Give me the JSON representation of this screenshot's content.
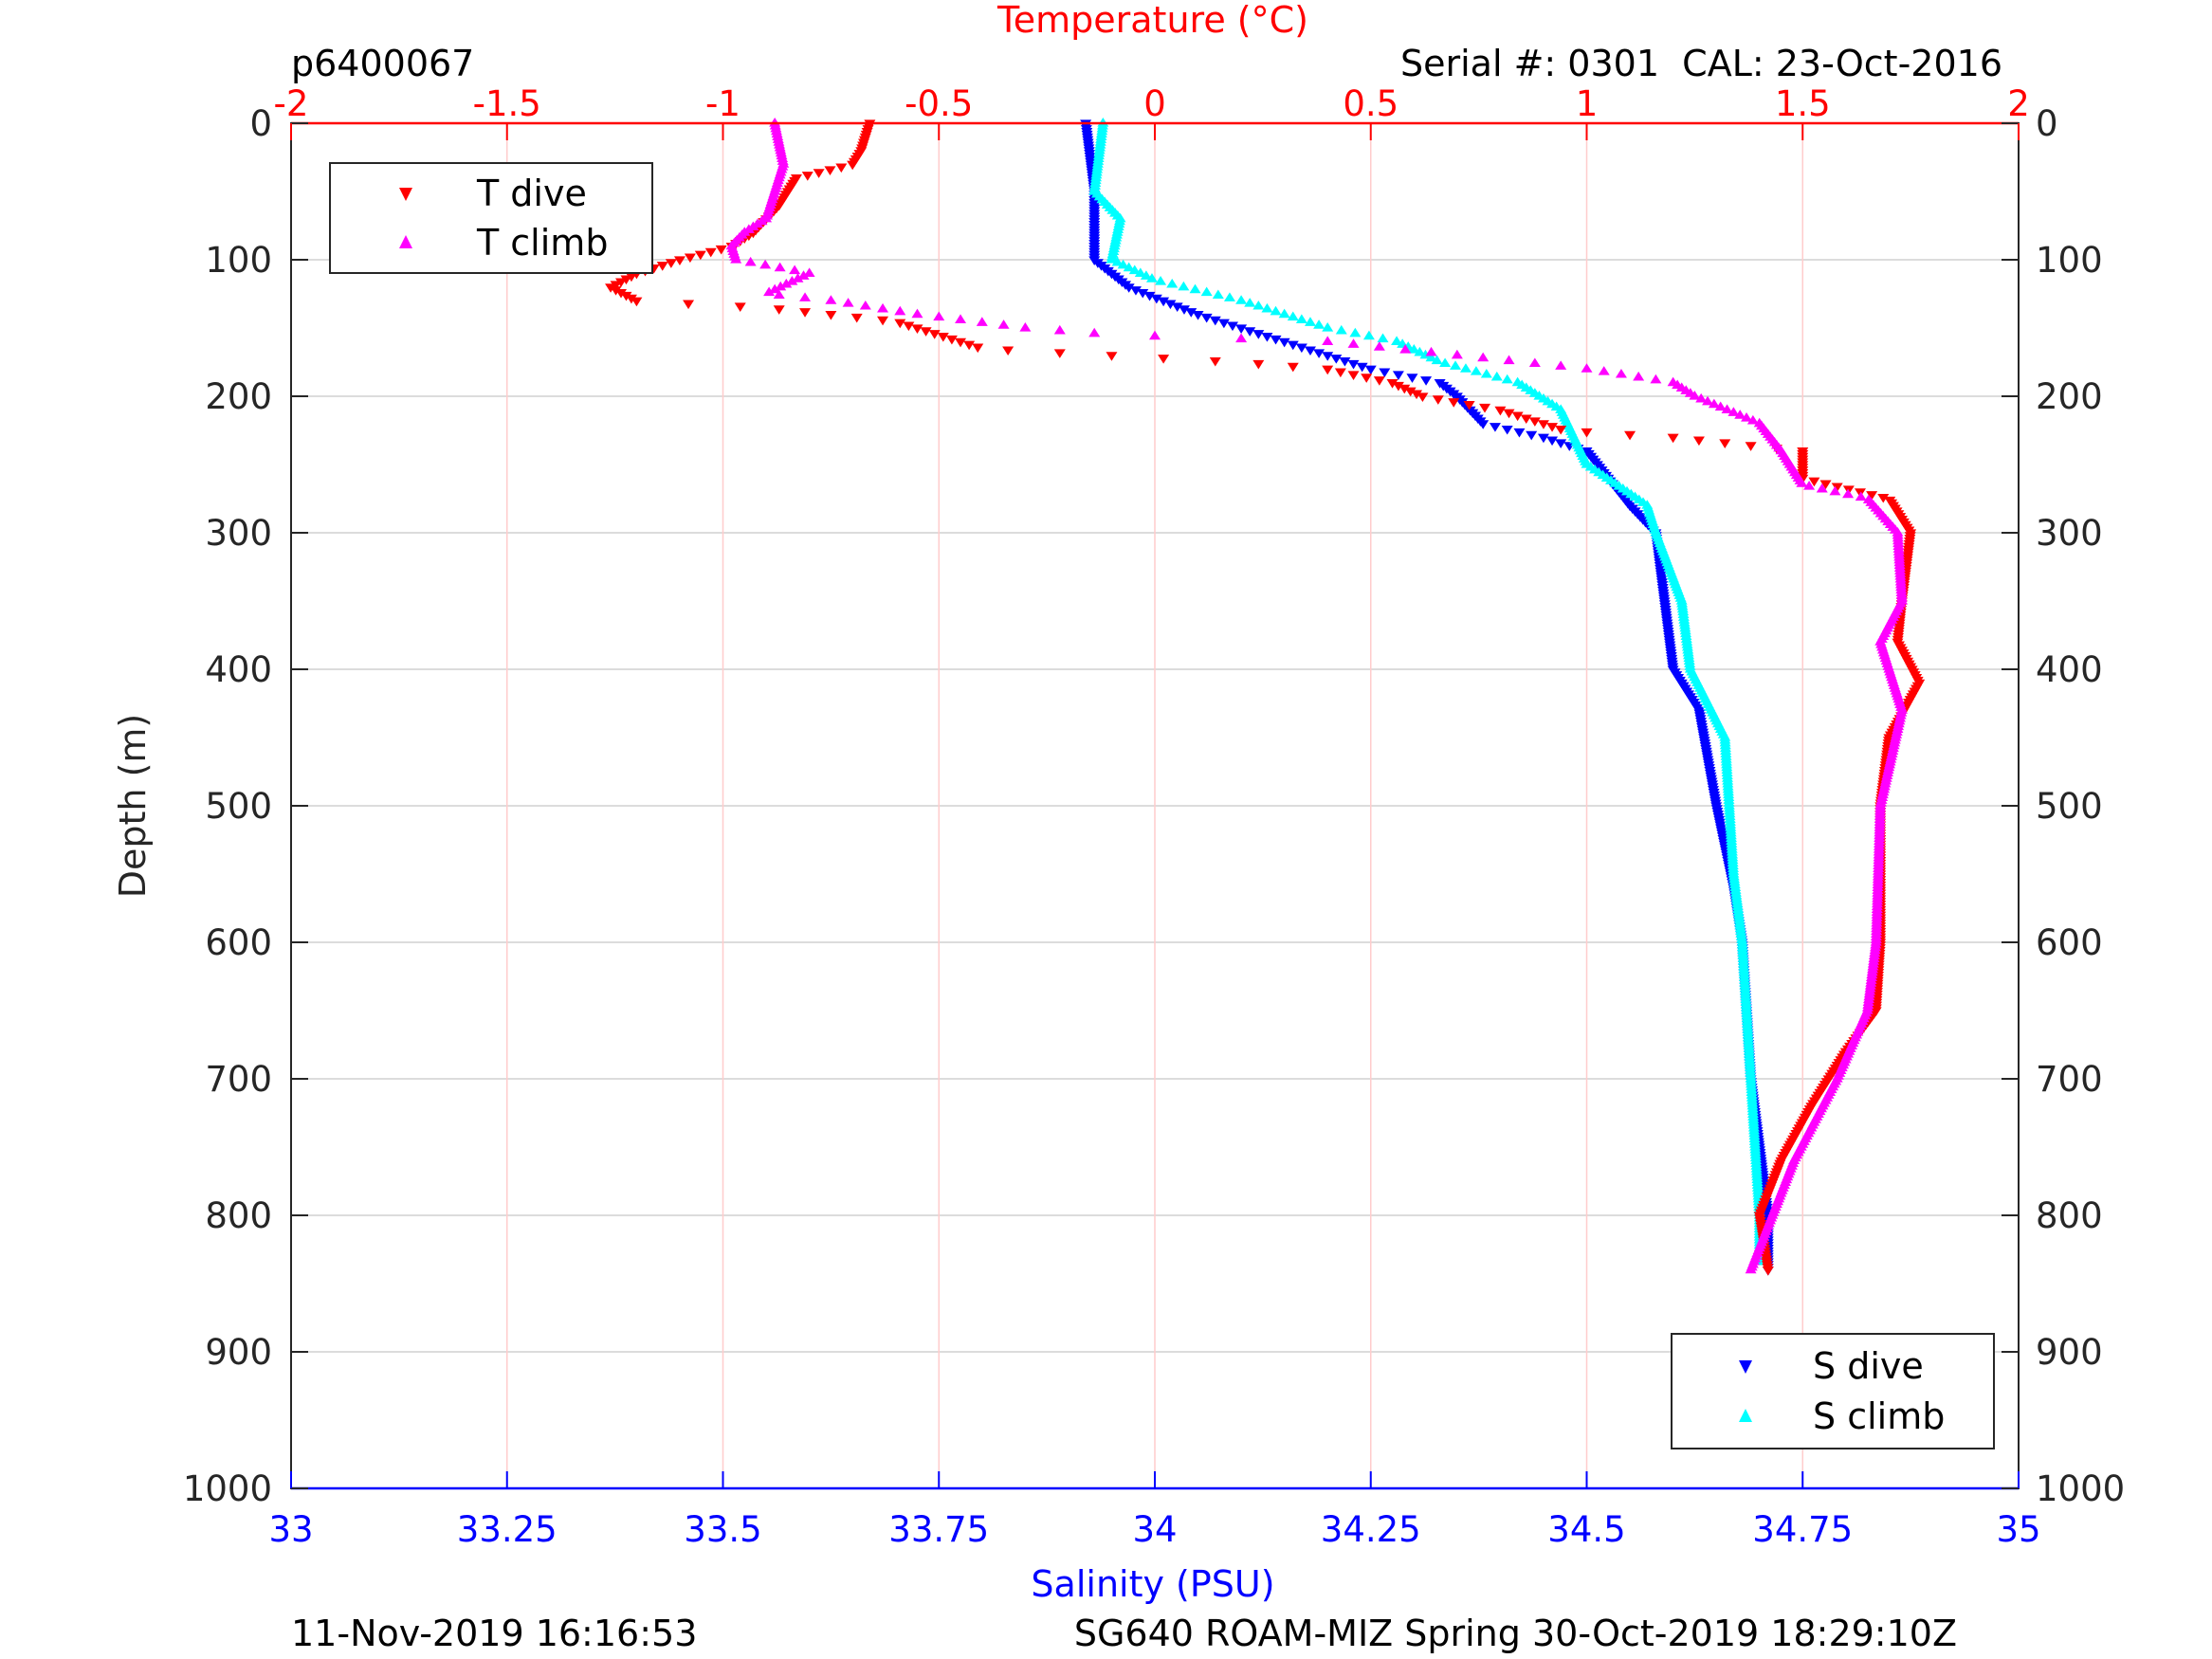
{
  "header": {
    "profile_id": "p6400067",
    "serial": "Serial #: 0301  CAL: 23-Oct-2016"
  },
  "footer": {
    "plot_date": "11-Nov-2019 16:16:53",
    "mission": "SG640 ROAM-MIZ Spring 30-Oct-2019 18:29:10Z"
  },
  "colors": {
    "t_dive": "#ff0000",
    "t_climb": "#ff00ff",
    "s_dive": "#0000ff",
    "s_climb": "#00ffff",
    "temp_axis": "#ff0000",
    "sal_axis": "#0000ff"
  },
  "chart_data": {
    "type": "scatter",
    "title": "",
    "top_xlabel": "Temperature (°C)",
    "bottom_xlabel": "Salinity (PSU)",
    "ylabel": "Depth (m)",
    "temp_lim": [
      -2,
      2
    ],
    "sal_lim": [
      33,
      35
    ],
    "ylim": [
      0,
      1000
    ],
    "y_reversed": true,
    "grid": true,
    "temp_ticks": [
      "-2",
      "-1.5",
      "-1",
      "-0.5",
      "0",
      "0.5",
      "1",
      "1.5",
      "2"
    ],
    "sal_ticks": [
      "33",
      "33.25",
      "33.5",
      "33.75",
      "34",
      "34.25",
      "34.5",
      "34.75",
      "35"
    ],
    "depth_ticks": [
      "0",
      "100",
      "200",
      "300",
      "400",
      "500",
      "600",
      "700",
      "800",
      "900",
      "1000"
    ],
    "legends": [
      {
        "placement": "top-left",
        "entries": [
          "T dive",
          "T climb"
        ]
      },
      {
        "placement": "bottom-right",
        "entries": [
          "S dive",
          "S climb"
        ]
      }
    ],
    "series": [
      {
        "name": "T dive",
        "axis": "temp",
        "marker": "down-triangle",
        "depth": [
          0,
          20,
          30,
          40,
          60,
          80,
          90,
          100,
          110,
          120,
          130,
          135,
          145,
          155,
          165,
          170,
          175,
          180,
          190,
          200,
          210,
          225,
          230,
          240,
          260,
          275,
          300,
          350,
          380,
          410,
          450,
          500,
          600,
          650,
          680,
          720,
          760,
          800,
          840
        ],
        "value": [
          -0.66,
          -0.68,
          -0.7,
          -0.83,
          -0.87,
          -0.93,
          -0.98,
          -1.1,
          -1.2,
          -1.26,
          -1.2,
          -0.9,
          -0.6,
          -0.5,
          -0.4,
          -0.1,
          0.2,
          0.4,
          0.55,
          0.62,
          0.8,
          0.95,
          1.2,
          1.5,
          1.5,
          1.7,
          1.75,
          1.73,
          1.72,
          1.77,
          1.7,
          1.68,
          1.68,
          1.67,
          1.6,
          1.52,
          1.45,
          1.4,
          1.42
        ]
      },
      {
        "name": "T climb",
        "axis": "temp",
        "marker": "up-triangle",
        "depth": [
          0,
          30,
          50,
          70,
          80,
          90,
          100,
          110,
          125,
          130,
          140,
          150,
          155,
          160,
          170,
          180,
          190,
          200,
          220,
          240,
          265,
          275,
          300,
          350,
          380,
          400,
          430,
          500,
          600,
          650,
          700,
          760,
          800,
          840
        ],
        "value": [
          -0.88,
          -0.86,
          -0.88,
          -0.9,
          -0.95,
          -0.98,
          -0.97,
          -0.8,
          -0.9,
          -0.75,
          -0.55,
          -0.3,
          -0.1,
          0.4,
          0.7,
          1.0,
          1.2,
          1.25,
          1.4,
          1.45,
          1.5,
          1.65,
          1.72,
          1.73,
          1.68,
          1.7,
          1.73,
          1.68,
          1.67,
          1.65,
          1.58,
          1.48,
          1.43,
          1.38
        ]
      },
      {
        "name": "S dive",
        "axis": "sal",
        "marker": "down-triangle",
        "depth": [
          0,
          50,
          100,
          120,
          140,
          160,
          180,
          190,
          200,
          220,
          230,
          240,
          280,
          300,
          350,
          400,
          430,
          500,
          560,
          600,
          700,
          800,
          840
        ],
        "value": [
          33.92,
          33.93,
          33.93,
          33.97,
          34.05,
          34.15,
          34.25,
          34.33,
          34.35,
          34.38,
          34.45,
          34.5,
          34.55,
          34.58,
          34.59,
          34.6,
          34.63,
          34.65,
          34.67,
          34.68,
          34.69,
          34.71,
          34.71
        ]
      },
      {
        "name": "S climb",
        "axis": "sal",
        "marker": "up-triangle",
        "depth": [
          0,
          50,
          70,
          100,
          115,
          130,
          150,
          160,
          175,
          190,
          210,
          250,
          280,
          300,
          350,
          400,
          450,
          550,
          600,
          700,
          800,
          835
        ],
        "value": [
          33.94,
          33.93,
          33.96,
          33.95,
          34.0,
          34.1,
          34.2,
          34.28,
          34.33,
          34.42,
          34.47,
          34.5,
          34.57,
          34.58,
          34.61,
          34.62,
          34.66,
          34.67,
          34.68,
          34.69,
          34.7,
          34.7
        ]
      }
    ]
  }
}
